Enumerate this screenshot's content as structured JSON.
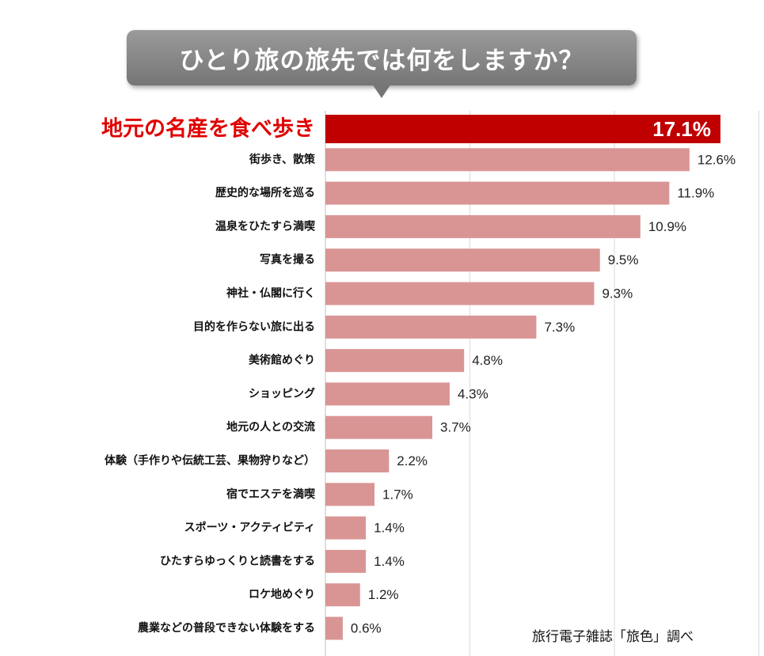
{
  "title": "ひとり旅の旅先では何をしますか？",
  "source": "旅行電子雑誌「旅色」調べ",
  "colors": {
    "top_bar": "#c00000",
    "bar": "#d99594",
    "top_label": "#e00000",
    "grid": "#d9d9d9",
    "axis": "#bfbfbf"
  },
  "chart_data": {
    "type": "bar",
    "orientation": "horizontal",
    "unit": "%",
    "grid": true,
    "xlim": [
      0,
      20
    ],
    "categories": [
      "地元の名産を食べ歩き",
      "街歩き、散策",
      "歴史的な場所を巡る",
      "温泉をひたすら満喫",
      "写真を撮る",
      "神社・仏閣に行く",
      "目的を作らない旅に出る",
      "美術館めぐり",
      "ショッピング",
      "地元の人との交流",
      "体験（手作りや伝統工芸、果物狩りなど）",
      "宿でエステを満喫",
      "スポーツ・アクティビティ",
      "ひたすらゆっくりと読書をする",
      "ロケ地めぐり",
      "農業などの普段できない体験をする"
    ],
    "values": [
      17.1,
      12.6,
      11.9,
      10.9,
      9.5,
      9.3,
      7.3,
      4.8,
      4.3,
      3.7,
      2.2,
      1.7,
      1.4,
      1.4,
      1.2,
      0.6
    ],
    "data_labels": [
      "17.1%",
      "12.6%",
      "11.9%",
      "10.9%",
      "9.5%",
      "9.3%",
      "7.3%",
      "4.8%",
      "4.3%",
      "3.7%",
      "2.2%",
      "1.7%",
      "1.4%",
      "1.4%",
      "1.2%",
      "0.6%"
    ]
  }
}
